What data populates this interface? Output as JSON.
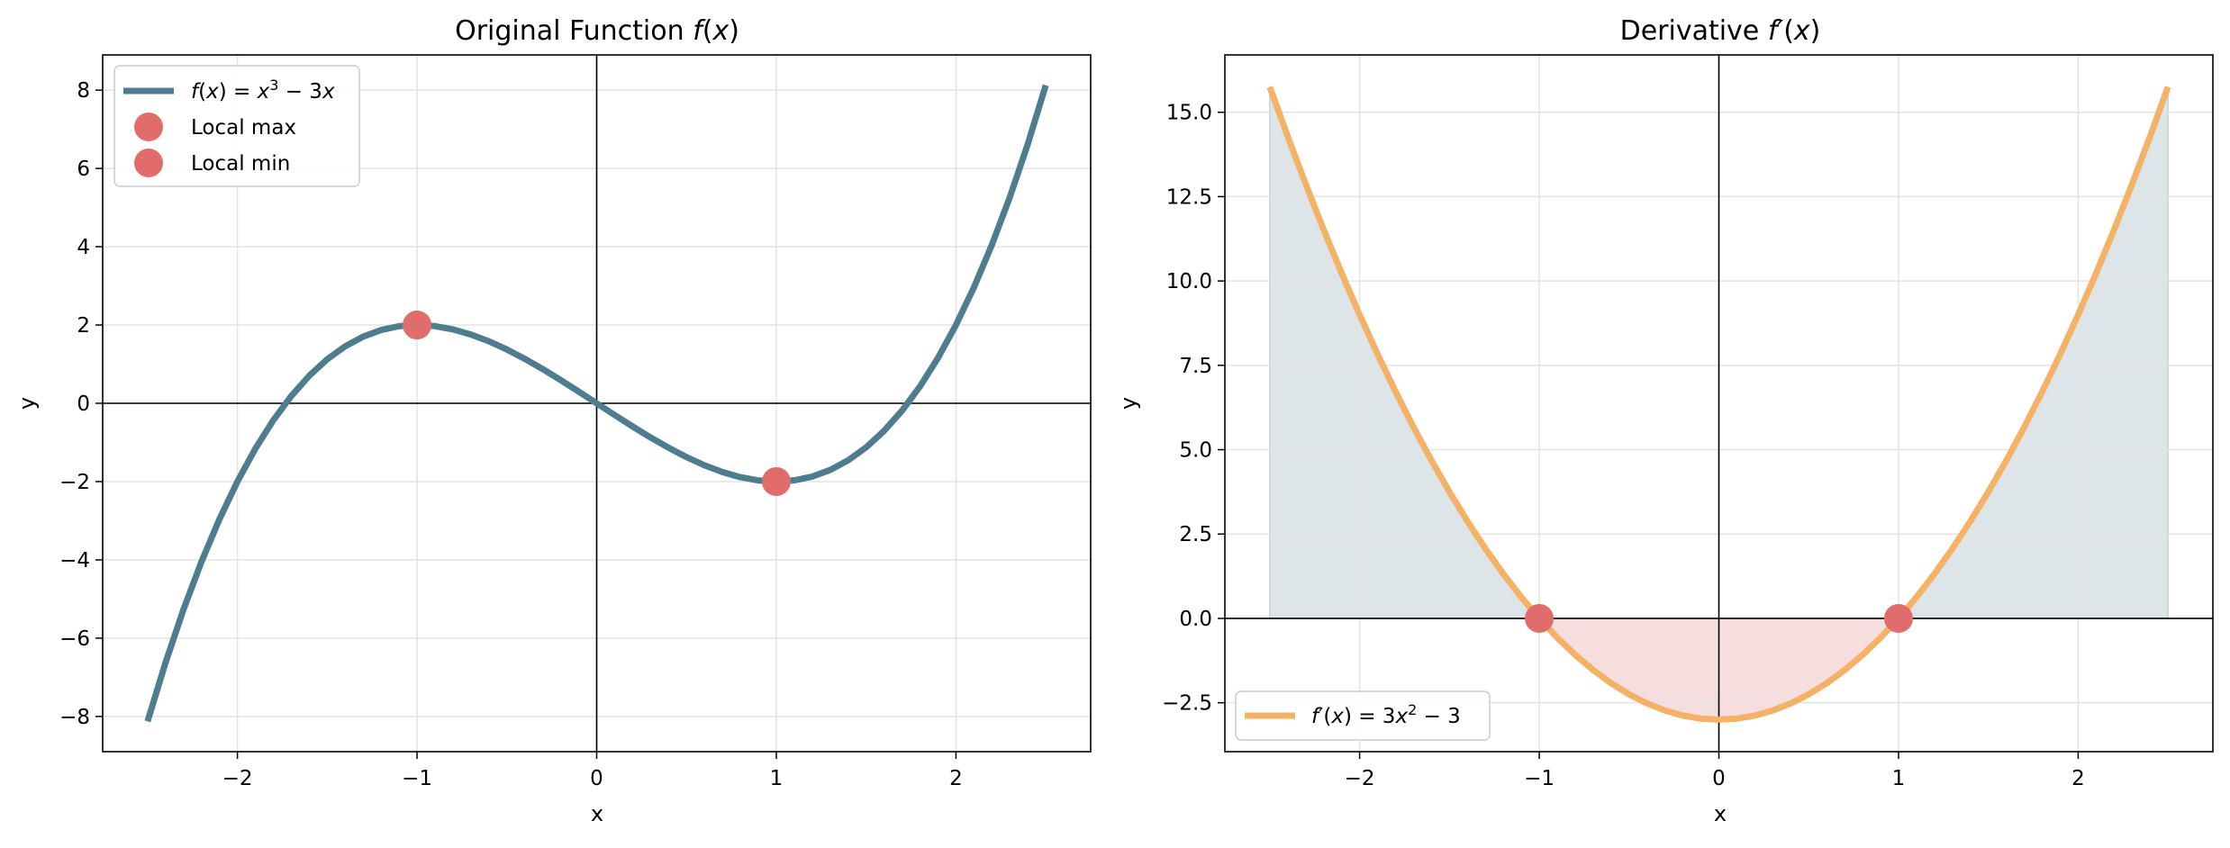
{
  "chart_data": [
    {
      "type": "line",
      "title": "Original Function f(x)",
      "title_parts": [
        "Original Function ",
        "f",
        "(",
        "x",
        ")"
      ],
      "xlabel": "x",
      "ylabel": "y",
      "xlim": [
        -2.75,
        2.75
      ],
      "ylim": [
        -8.9,
        8.9
      ],
      "xticks": [
        -2,
        -1,
        0,
        1,
        2
      ],
      "yticks": [
        -8,
        -6,
        -4,
        -2,
        0,
        2,
        4,
        6,
        8
      ],
      "xtick_labels": [
        "−2",
        "−1",
        "0",
        "1",
        "2"
      ],
      "ytick_labels": [
        "−8",
        "−6",
        "−4",
        "−2",
        "0",
        "2",
        "4",
        "6",
        "8"
      ],
      "grid": true,
      "legend": "top-left",
      "series": [
        {
          "name": "f(x) = x³ − 3x",
          "kind": "line",
          "color": "#4e7d8e",
          "x": [
            -2.5,
            -2.4,
            -2.3,
            -2.2,
            -2.1,
            -2.0,
            -1.9,
            -1.8,
            -1.7,
            -1.6,
            -1.5,
            -1.4,
            -1.3,
            -1.2,
            -1.1,
            -1.0,
            -0.9,
            -0.8,
            -0.7,
            -0.6,
            -0.5,
            -0.4,
            -0.3,
            -0.2,
            -0.1,
            0.0,
            0.1,
            0.2,
            0.3,
            0.4,
            0.5,
            0.6,
            0.7,
            0.8,
            0.9,
            1.0,
            1.1,
            1.2,
            1.3,
            1.4,
            1.5,
            1.6,
            1.7,
            1.8,
            1.9,
            2.0,
            2.1,
            2.2,
            2.3,
            2.4,
            2.5
          ],
          "y": [
            -8.125,
            -6.624,
            -5.267,
            -4.048,
            -2.961,
            -2.0,
            -1.159,
            -0.432,
            0.187,
            0.704,
            1.125,
            1.456,
            1.703,
            1.872,
            1.969,
            2.0,
            1.971,
            1.888,
            1.757,
            1.584,
            1.375,
            1.136,
            0.873,
            0.592,
            0.299,
            0.0,
            -0.299,
            -0.592,
            -0.873,
            -1.136,
            -1.375,
            -1.584,
            -1.757,
            -1.888,
            -1.971,
            -2.0,
            -1.969,
            -1.872,
            -1.703,
            -1.456,
            -1.125,
            -0.704,
            -0.187,
            0.432,
            1.159,
            2.0,
            2.961,
            4.048,
            5.267,
            6.624,
            8.125
          ]
        },
        {
          "name": "Local max",
          "kind": "point",
          "color": "#e06c6c",
          "x": [
            -1
          ],
          "y": [
            2
          ]
        },
        {
          "name": "Local min",
          "kind": "point",
          "color": "#e06c6c",
          "x": [
            1
          ],
          "y": [
            -2
          ]
        }
      ]
    },
    {
      "type": "area",
      "title": "Derivative f′(x)",
      "title_parts": [
        "Derivative ",
        "f′",
        "(",
        "x",
        ")"
      ],
      "xlabel": "x",
      "ylabel": "y",
      "xlim": [
        -2.75,
        2.75
      ],
      "ylim": [
        -3.95,
        16.7
      ],
      "xticks": [
        -2,
        -1,
        0,
        1,
        2
      ],
      "yticks": [
        -2.5,
        0.0,
        2.5,
        5.0,
        7.5,
        10.0,
        12.5,
        15.0
      ],
      "xtick_labels": [
        "−2",
        "−1",
        "0",
        "1",
        "2"
      ],
      "ytick_labels": [
        "−2.5",
        "0.0",
        "2.5",
        "5.0",
        "7.5",
        "10.0",
        "12.5",
        "15.0"
      ],
      "grid": true,
      "legend": "bottom-left",
      "fill_positive_color": "#dbe4e7",
      "fill_negative_color": "#f5dcdd",
      "series": [
        {
          "name": "f′(x) = 3x² − 3",
          "kind": "line",
          "color": "#f4b266",
          "x": [
            -2.5,
            -2.4,
            -2.3,
            -2.2,
            -2.1,
            -2.0,
            -1.9,
            -1.8,
            -1.7,
            -1.6,
            -1.5,
            -1.4,
            -1.3,
            -1.2,
            -1.1,
            -1.0,
            -0.9,
            -0.8,
            -0.7,
            -0.6,
            -0.5,
            -0.4,
            -0.3,
            -0.2,
            -0.1,
            0.0,
            0.1,
            0.2,
            0.3,
            0.4,
            0.5,
            0.6,
            0.7,
            0.8,
            0.9,
            1.0,
            1.1,
            1.2,
            1.3,
            1.4,
            1.5,
            1.6,
            1.7,
            1.8,
            1.9,
            2.0,
            2.1,
            2.2,
            2.3,
            2.4,
            2.5
          ],
          "y": [
            15.75,
            14.28,
            12.87,
            11.52,
            10.23,
            9.0,
            7.83,
            6.72,
            5.67,
            4.68,
            3.75,
            2.88,
            2.07,
            1.32,
            0.63,
            0.0,
            -0.57,
            -1.08,
            -1.53,
            -1.92,
            -2.25,
            -2.52,
            -2.73,
            -2.88,
            -2.97,
            -3.0,
            -2.97,
            -2.88,
            -2.73,
            -2.52,
            -2.25,
            -1.92,
            -1.53,
            -1.08,
            -0.57,
            0.0,
            0.63,
            1.32,
            2.07,
            2.88,
            3.75,
            4.68,
            5.67,
            6.72,
            7.83,
            9.0,
            10.23,
            11.52,
            12.87,
            14.28,
            15.75
          ]
        },
        {
          "name": "",
          "kind": "point",
          "color": "#e06c6c",
          "x": [
            -1,
            1
          ],
          "y": [
            0,
            0
          ]
        }
      ]
    }
  ]
}
